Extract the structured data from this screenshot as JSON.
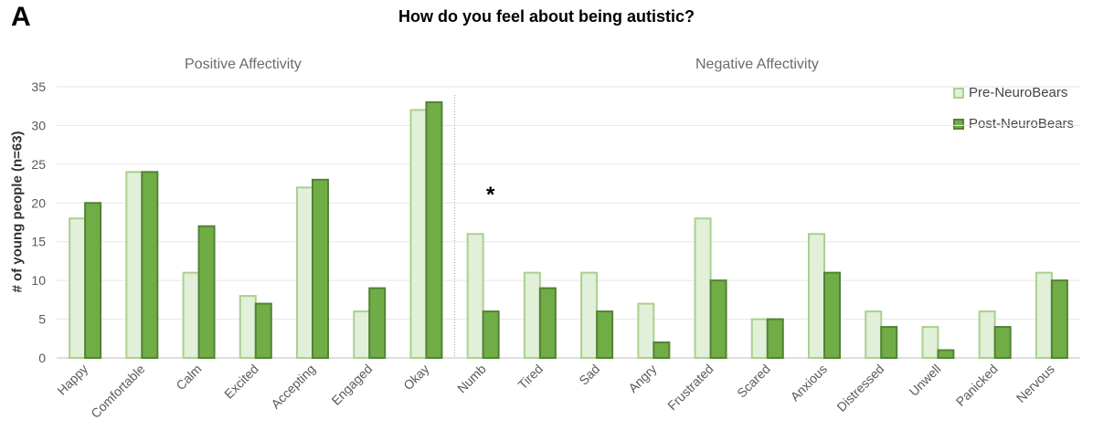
{
  "panel_label": "A",
  "colors": {
    "pre_fill": "#e2efd9",
    "pre_stroke": "#a9d18e",
    "post_fill": "#70ad47",
    "post_stroke": "#548235"
  },
  "chart_data": {
    "type": "bar",
    "title": "How do you feel about being autistic?",
    "ylabel": "# of young people (n=63)",
    "xlabel": "",
    "ylim": [
      0,
      35
    ],
    "yticks": [
      0,
      5,
      10,
      15,
      20,
      25,
      30,
      35
    ],
    "grid": true,
    "legend_position": "top-right",
    "groups": [
      {
        "label": "Positive Affectivity",
        "categories": [
          "Happy",
          "Comfortable",
          "Calm",
          "Excited",
          "Accepting",
          "Engaged",
          "Okay"
        ]
      },
      {
        "label": "Negative Affectivity",
        "categories": [
          "Numb",
          "Tired",
          "Sad",
          "Angry",
          "Frustrated",
          "Scared",
          "Anxious",
          "Distressed",
          "Unwell",
          "Panicked",
          "Nervous"
        ]
      }
    ],
    "categories": [
      "Happy",
      "Comfortable",
      "Calm",
      "Excited",
      "Accepting",
      "Engaged",
      "Okay",
      "Numb",
      "Tired",
      "Sad",
      "Angry",
      "Frustrated",
      "Scared",
      "Anxious",
      "Distressed",
      "Unwell",
      "Panicked",
      "Nervous"
    ],
    "series": [
      {
        "name": "Pre-NeuroBears",
        "values": [
          18,
          24,
          11,
          8,
          22,
          6,
          32,
          16,
          11,
          11,
          7,
          18,
          5,
          16,
          6,
          4,
          6,
          11
        ]
      },
      {
        "name": "Post-NeuroBears",
        "values": [
          20,
          24,
          17,
          7,
          23,
          9,
          33,
          6,
          9,
          6,
          2,
          10,
          5,
          11,
          4,
          1,
          4,
          10
        ]
      }
    ],
    "annotations": [
      {
        "text": "*",
        "category": "Numb"
      }
    ]
  }
}
